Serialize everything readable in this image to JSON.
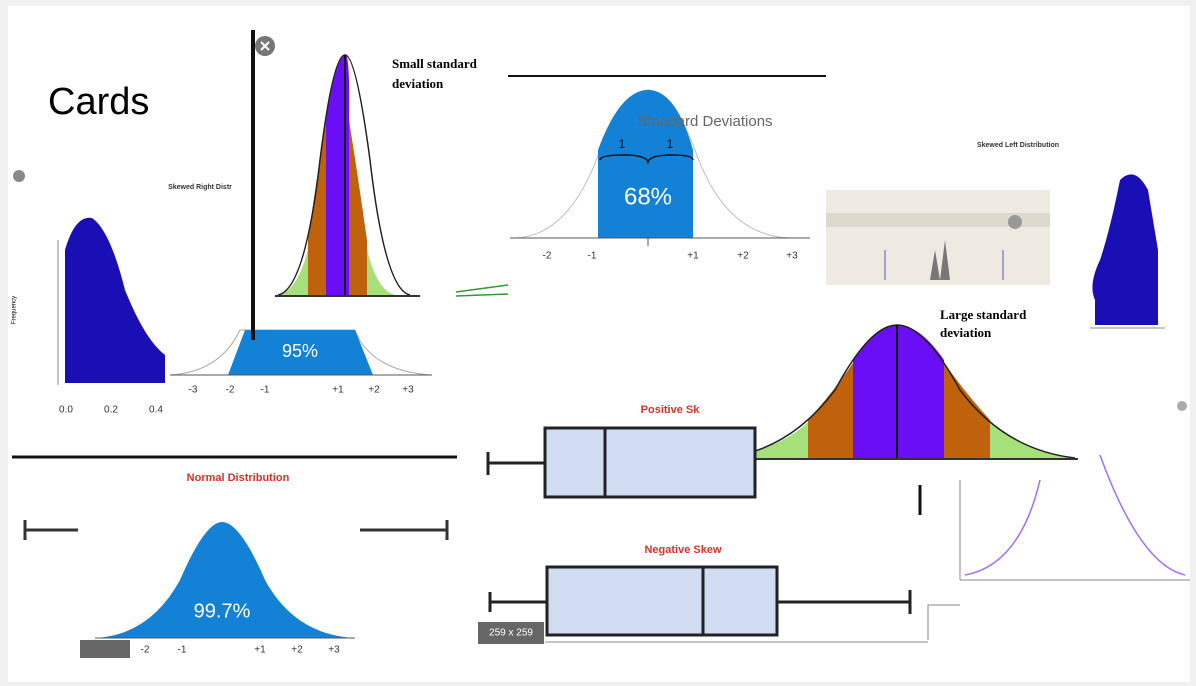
{
  "title": "Cards",
  "cards": [
    {
      "title": "Small standard",
      "subtitle": "deviation"
    },
    {
      "title": "Standard Deviations",
      "label": "68%",
      "brace_labels": [
        "1",
        "1"
      ],
      "ticks": [
        "-2",
        "-1",
        "+1",
        "+2",
        "+3"
      ]
    },
    {
      "title": "Skewed Right Distr",
      "y_label": "Frequency",
      "ticks": [
        "0.0",
        "0.2",
        "0.4"
      ]
    },
    {
      "label": "95%",
      "ticks": [
        "-3",
        "-2",
        "-1",
        "+1",
        "+2",
        "+3"
      ]
    },
    {
      "title": "Normal Distribution",
      "label": "99.7%",
      "ticks": [
        "-2",
        "-1",
        "+1",
        "+2",
        "+3"
      ]
    },
    {
      "title": "Positive Sk"
    },
    {
      "title": "Negative Skew",
      "badge": "259 x 259"
    },
    {
      "title": "Large standard",
      "subtitle": "deviation"
    },
    {
      "title": "Skewed Left Distribution"
    }
  ]
}
